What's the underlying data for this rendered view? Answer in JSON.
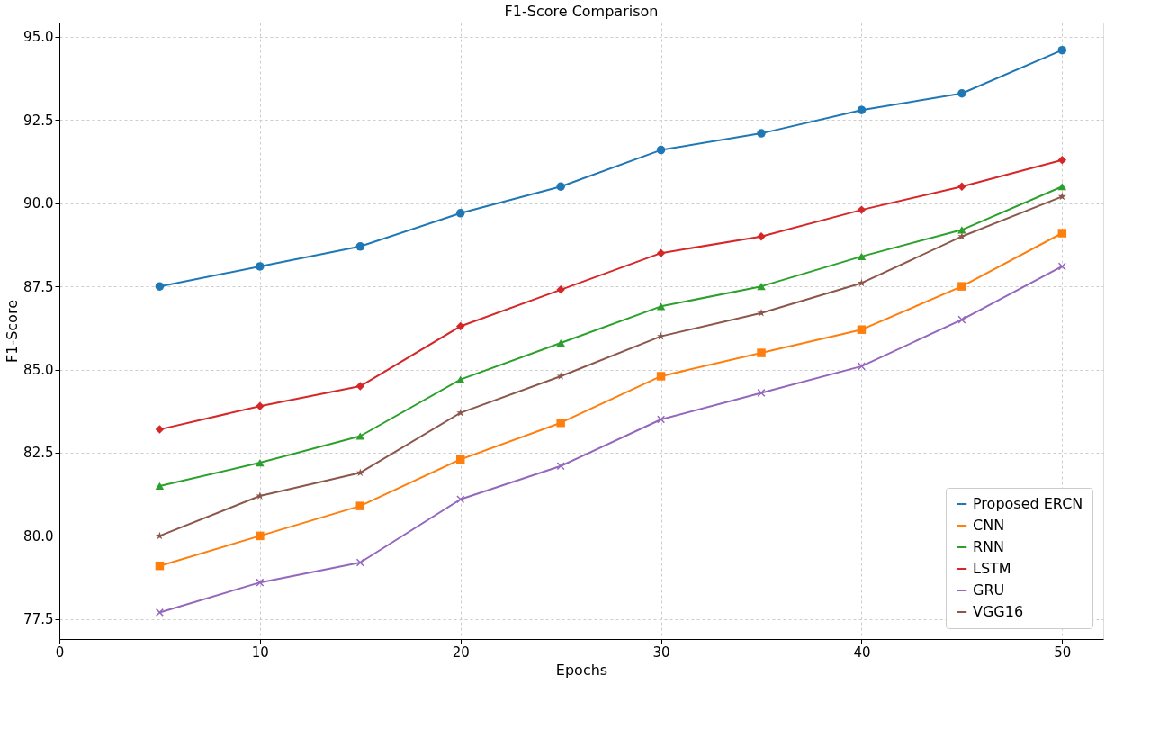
{
  "chart_data": {
    "type": "line",
    "title": "F1-Score Comparison",
    "xlabel": "Epochs",
    "ylabel": "F1-Score",
    "x": [
      5,
      10,
      15,
      20,
      25,
      30,
      35,
      40,
      45,
      50
    ],
    "series": [
      {
        "name": "Proposed ERCN",
        "color": "#1f77b4",
        "marker": "circle",
        "values": [
          87.5,
          88.1,
          88.7,
          89.7,
          90.5,
          91.6,
          92.1,
          92.8,
          93.3,
          94.6
        ]
      },
      {
        "name": "CNN",
        "color": "#ff7f0e",
        "marker": "square",
        "values": [
          79.1,
          80.0,
          80.9,
          82.3,
          83.4,
          84.8,
          85.5,
          86.2,
          87.5,
          89.1
        ]
      },
      {
        "name": "RNN",
        "color": "#2ca02c",
        "marker": "triangle",
        "values": [
          81.5,
          82.2,
          83.0,
          84.7,
          85.8,
          86.9,
          87.5,
          88.4,
          89.2,
          90.5
        ]
      },
      {
        "name": "LSTM",
        "color": "#d62728",
        "marker": "diamond",
        "values": [
          83.2,
          83.9,
          84.5,
          86.3,
          87.4,
          88.5,
          89.0,
          89.8,
          90.5,
          91.3
        ]
      },
      {
        "name": "GRU",
        "color": "#9467bd",
        "marker": "cross",
        "values": [
          77.7,
          78.6,
          79.2,
          81.1,
          82.1,
          83.5,
          84.3,
          85.1,
          86.5,
          88.1
        ]
      },
      {
        "name": "VGG16",
        "color": "#8c564b",
        "marker": "star",
        "values": [
          80.0,
          81.2,
          81.9,
          83.7,
          84.8,
          86.0,
          86.7,
          87.6,
          89.0,
          90.2
        ]
      }
    ],
    "xlim": [
      0,
      52.05
    ],
    "xticks": [
      0,
      10,
      20,
      30,
      40,
      50
    ],
    "ylim": [
      76.9,
      95.43
    ],
    "yticks": [
      {
        "value": 77.5,
        "label": "77.5"
      },
      {
        "value": 80,
        "label": "80.0"
      },
      {
        "value": 82.5,
        "label": "82.5"
      },
      {
        "value": 85,
        "label": "85.0"
      },
      {
        "value": 87.5,
        "label": "87.5"
      },
      {
        "value": 90,
        "label": "90.0"
      },
      {
        "value": 92.5,
        "label": "92.5"
      },
      {
        "value": 95,
        "label": "95.0"
      }
    ],
    "grid": true,
    "legend": "bottom right",
    "line_style": "solid"
  }
}
